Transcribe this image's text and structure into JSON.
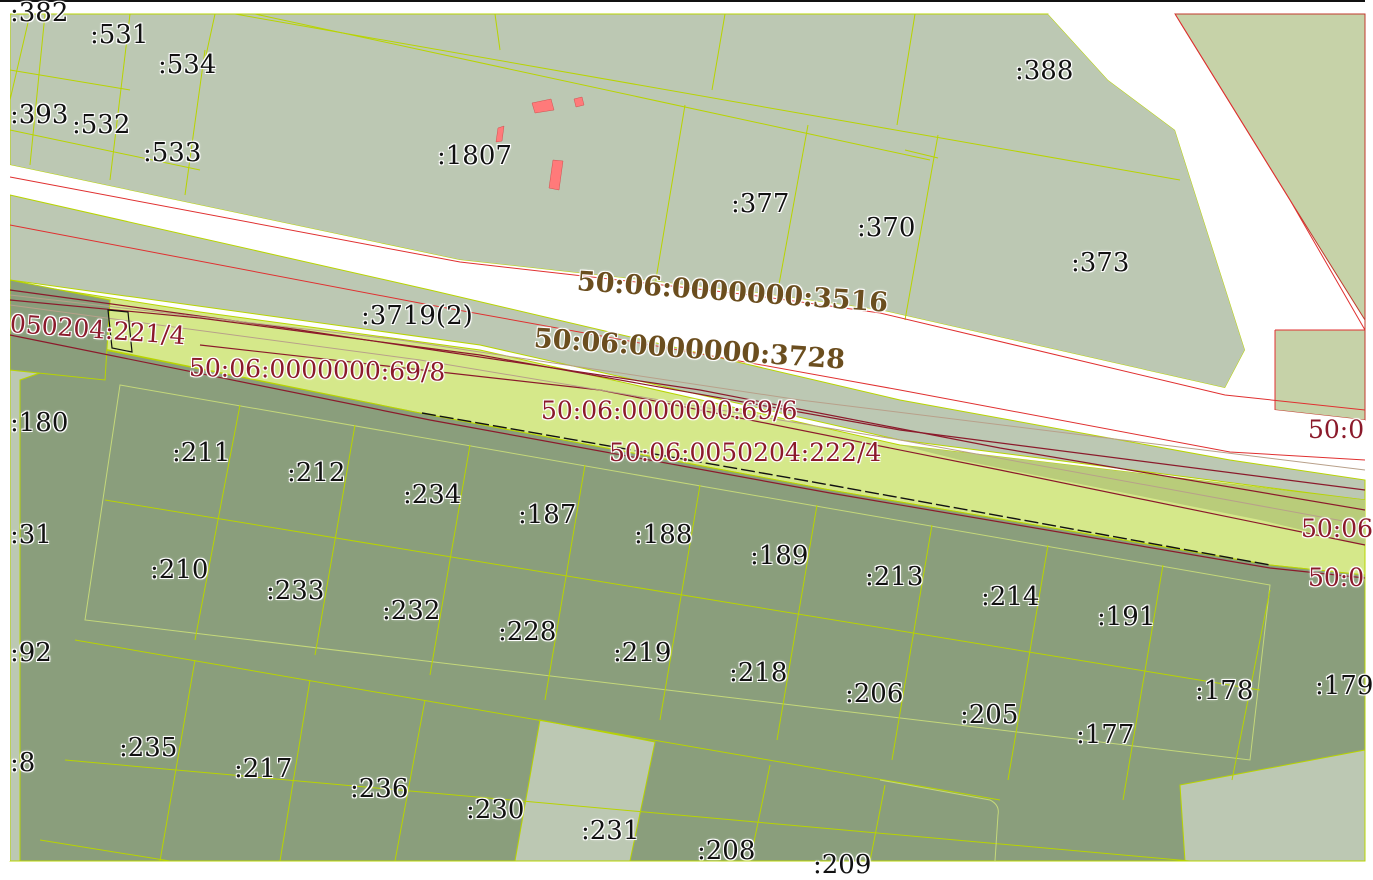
{
  "colors": {
    "light_parcel": "#bcc8b3",
    "dark_parcel": "#8a9e7c",
    "highlight_strip": "#d5e88a",
    "olive_area": "#c6d2a8",
    "parcel_border": "#b8d400",
    "red_boundary": "#e03030",
    "building": "#ff7a7a",
    "dark_red_line": "#8b1a2b"
  },
  "parcel_labels": [
    ":382",
    ":531",
    ":534",
    ":393",
    ":532",
    ":533",
    ":1807",
    ":388",
    ":377",
    ":370",
    ":373",
    ":3719(2)",
    ":180",
    ":211",
    ":212",
    ":234",
    ":187",
    ":188",
    ":189",
    ":213",
    ":214",
    ":191",
    ":31",
    ":210",
    ":233",
    ":232",
    ":228",
    ":219",
    ":218",
    ":206",
    ":205",
    ":178",
    ":179",
    ":177",
    ":92",
    ":235",
    ":217",
    ":236",
    ":230",
    ":231",
    ":208",
    ":209",
    ":8"
  ],
  "cadastral_labels_red": [
    "050204:221/4",
    "50:06:0000000:69/8",
    "50:06:0000000:69/6",
    "50:06:0050204:222/4",
    "50:0",
    "50:06",
    "50:0"
  ],
  "cadastral_labels_bold": [
    "50:06:0000000:3516",
    "50:06:0000000:3728"
  ]
}
